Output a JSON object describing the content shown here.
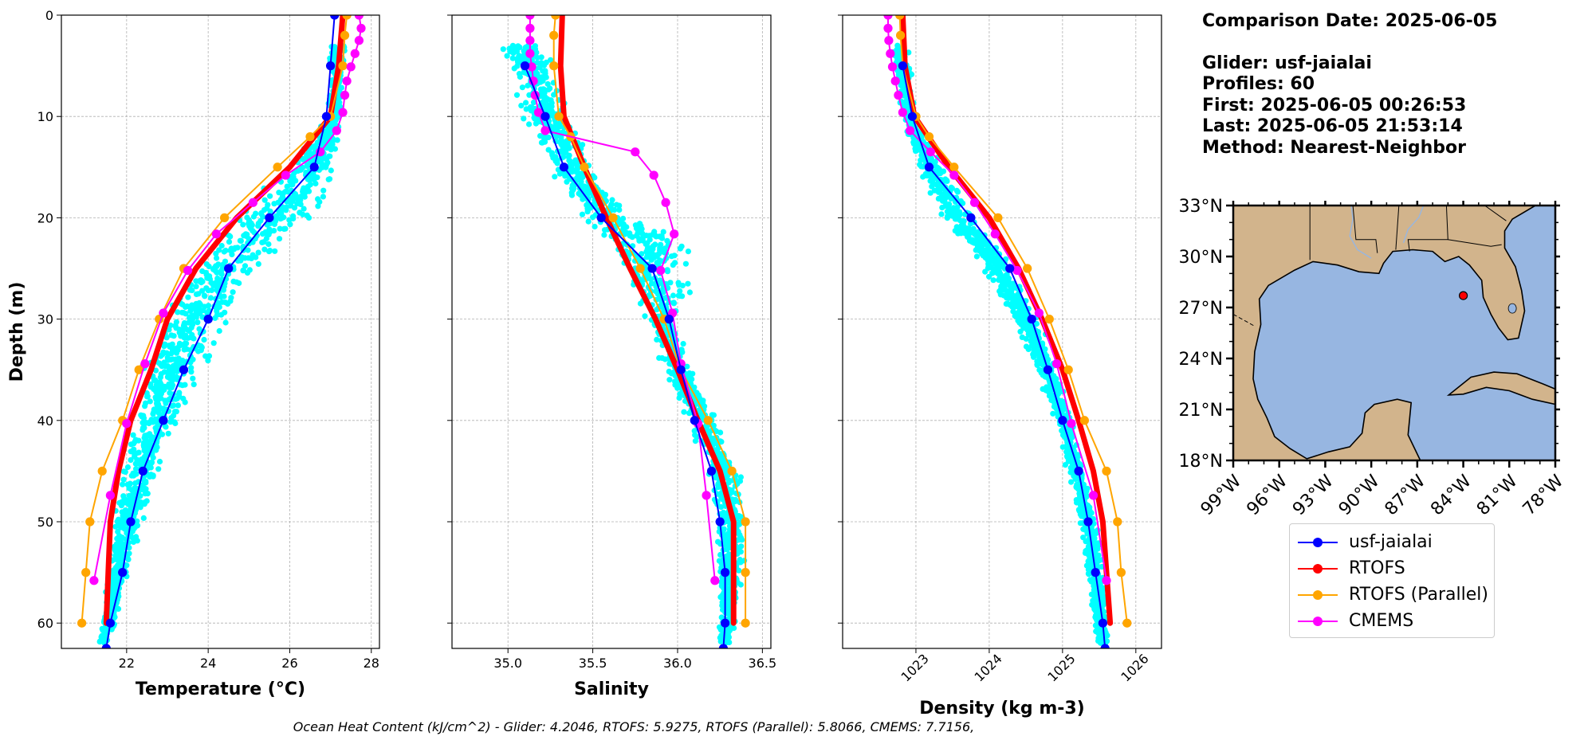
{
  "chart_data": [
    {
      "type": "line",
      "panel": "temperature",
      "xlabel": "Temperature (°C)",
      "ylabel": "Depth (m)",
      "xlim": [
        20.4,
        28.2
      ],
      "ylim": [
        62.5,
        0
      ],
      "xticks": [
        "22",
        "24",
        "26",
        "28"
      ],
      "yticks": [
        "0",
        "10",
        "20",
        "30",
        "40",
        "50",
        "60"
      ],
      "grid": true,
      "scatter_color": "#00ffff",
      "scatter_envelope": {
        "depths": [
          3,
          5,
          10,
          15,
          20,
          25,
          30,
          35,
          40,
          45,
          50,
          55,
          60,
          62
        ],
        "min": [
          26.9,
          26.9,
          26.9,
          25.8,
          24.3,
          23.3,
          22.7,
          22.3,
          22.0,
          21.8,
          21.6,
          21.5,
          21.3,
          21.2
        ],
        "max": [
          27.5,
          27.4,
          27.3,
          27.3,
          26.9,
          25.4,
          24.6,
          24.0,
          23.4,
          22.9,
          22.5,
          22.1,
          21.8,
          21.6
        ]
      },
      "series": [
        {
          "name": "usf-jaialai",
          "color": "#0000ff",
          "lw": 2,
          "marker": 9,
          "depth": [
            0,
            5,
            10,
            15,
            20,
            25,
            30,
            35,
            40,
            45,
            50,
            55,
            60,
            62.5
          ],
          "values": [
            27.1,
            27.0,
            26.9,
            26.6,
            25.5,
            24.5,
            24.0,
            23.4,
            22.9,
            22.4,
            22.1,
            21.9,
            21.6,
            21.5
          ]
        },
        {
          "name": "RTOFS",
          "color": "#ff0000",
          "lw": 7,
          "marker": 0,
          "depth": [
            0,
            5,
            10,
            15,
            20,
            25,
            30,
            35,
            40,
            45,
            50,
            55,
            60
          ],
          "values": [
            27.3,
            27.2,
            27.0,
            26.0,
            24.7,
            23.7,
            23.0,
            22.6,
            22.1,
            21.8,
            21.6,
            21.55,
            21.5
          ]
        },
        {
          "name": "RTOFS (Parallel)",
          "color": "#ffa500",
          "lw": 2,
          "marker": 9,
          "depth": [
            0,
            2,
            5,
            10,
            12,
            15,
            20,
            25,
            30,
            35,
            40,
            45,
            50,
            55,
            60
          ],
          "values": [
            27.4,
            27.35,
            27.3,
            27.0,
            26.5,
            25.7,
            24.4,
            23.4,
            22.8,
            22.3,
            21.9,
            21.4,
            21.1,
            21.0,
            20.9
          ]
        },
        {
          "name": "CMEMS",
          "color": "#ff00ff",
          "lw": 2,
          "marker": 9,
          "depth": [
            0,
            1.3,
            2.5,
            3.8,
            5.1,
            6.5,
            7.9,
            9.6,
            11.4,
            13.5,
            15.8,
            18.5,
            21.6,
            25.2,
            29.4,
            34.4,
            40.3,
            47.4,
            55.8
          ],
          "values": [
            27.7,
            27.75,
            27.7,
            27.6,
            27.5,
            27.4,
            27.35,
            27.3,
            27.15,
            26.75,
            25.9,
            25.1,
            24.2,
            23.5,
            22.9,
            22.45,
            22.0,
            21.6,
            21.2
          ]
        }
      ]
    },
    {
      "type": "line",
      "panel": "salinity",
      "xlabel": "Salinity",
      "xlim": [
        34.67,
        36.55
      ],
      "ylim": [
        62.5,
        0
      ],
      "xticks": [
        "35.0",
        "35.5",
        "36.0",
        "36.5"
      ],
      "grid": true,
      "scatter_color": "#00ffff",
      "scatter_envelope": {
        "depths": [
          3,
          5,
          10,
          15,
          20,
          22,
          25,
          28,
          30,
          35,
          40,
          45,
          50,
          55,
          60,
          62
        ],
        "min": [
          34.9,
          34.95,
          35.05,
          35.2,
          35.4,
          35.5,
          35.6,
          35.7,
          35.8,
          35.9,
          36.05,
          36.15,
          36.2,
          36.22,
          36.23,
          36.23
        ],
        "max": [
          35.25,
          35.3,
          35.4,
          35.55,
          35.75,
          36.1,
          36.1,
          36.15,
          36.0,
          36.1,
          36.25,
          36.38,
          36.45,
          36.4,
          36.35,
          36.32
        ]
      },
      "series": [
        {
          "name": "usf-jaialai",
          "color": "#0000ff",
          "lw": 2,
          "marker": 9,
          "depth": [
            5,
            10,
            15,
            20,
            25,
            30,
            35,
            40,
            45,
            50,
            55,
            60,
            62.5
          ],
          "values": [
            35.1,
            35.22,
            35.33,
            35.55,
            35.85,
            35.95,
            36.02,
            36.1,
            36.2,
            36.25,
            36.28,
            36.28,
            36.27
          ]
        },
        {
          "name": "RTOFS",
          "color": "#ff0000",
          "lw": 7,
          "marker": 0,
          "depth": [
            0,
            5,
            10,
            15,
            20,
            25,
            30,
            35,
            40,
            45,
            50,
            55,
            60
          ],
          "values": [
            35.32,
            35.31,
            35.33,
            35.45,
            35.58,
            35.72,
            35.87,
            36.0,
            36.12,
            36.25,
            36.33,
            36.33,
            36.33
          ]
        },
        {
          "name": "RTOFS (Parallel)",
          "color": "#ffa500",
          "lw": 2,
          "marker": 9,
          "depth": [
            0,
            2,
            5,
            10,
            12,
            15,
            20,
            25,
            30,
            35,
            40,
            45,
            50,
            55,
            60
          ],
          "values": [
            35.28,
            35.27,
            35.27,
            35.3,
            35.37,
            35.45,
            35.62,
            35.78,
            35.92,
            36.02,
            36.18,
            36.32,
            36.4,
            36.4,
            36.4
          ]
        },
        {
          "name": "CMEMS",
          "color": "#ff00ff",
          "lw": 2,
          "marker": 9,
          "depth": [
            0,
            1.3,
            2.5,
            3.8,
            5.1,
            6.5,
            7.9,
            9.6,
            11.4,
            13.5,
            15.8,
            18.5,
            21.6,
            25.2,
            29.4,
            34.4,
            40.3,
            47.4,
            55.8
          ],
          "values": [
            35.13,
            35.13,
            35.13,
            35.13,
            35.14,
            35.15,
            35.16,
            35.18,
            35.22,
            35.75,
            35.86,
            35.93,
            35.98,
            35.9,
            35.97,
            36.02,
            36.12,
            36.17,
            36.22
          ]
        }
      ]
    },
    {
      "type": "line",
      "panel": "density",
      "xlabel": "Density (kg m-3)",
      "xlim": [
        1022.0,
        1026.35
      ],
      "ylim": [
        62.5,
        0
      ],
      "xticks": [
        "1023",
        "1024",
        "1025",
        "1026"
      ],
      "grid": true,
      "scatter_color": "#00ffff",
      "scatter_envelope": {
        "depths": [
          3,
          5,
          10,
          15,
          20,
          25,
          30,
          35,
          40,
          45,
          50,
          55,
          60,
          62
        ],
        "min": [
          1022.65,
          1022.68,
          1022.78,
          1022.95,
          1023.3,
          1023.85,
          1024.3,
          1024.62,
          1024.88,
          1025.05,
          1025.2,
          1025.3,
          1025.4,
          1025.45
        ],
        "max": [
          1022.9,
          1022.95,
          1023.0,
          1023.45,
          1023.85,
          1024.4,
          1024.7,
          1024.95,
          1025.15,
          1025.35,
          1025.5,
          1025.6,
          1025.65,
          1025.65
        ]
      },
      "series": [
        {
          "name": "usf-jaialai",
          "color": "#0000ff",
          "lw": 2,
          "marker": 9,
          "depth": [
            5,
            10,
            15,
            20,
            25,
            30,
            35,
            40,
            45,
            50,
            55,
            60,
            62.5
          ],
          "values": [
            1022.82,
            1022.95,
            1023.18,
            1023.75,
            1024.28,
            1024.58,
            1024.8,
            1025.0,
            1025.22,
            1025.35,
            1025.45,
            1025.55,
            1025.58
          ]
        },
        {
          "name": "RTOFS",
          "color": "#ff0000",
          "lw": 7,
          "marker": 0,
          "depth": [
            0,
            5,
            10,
            15,
            20,
            25,
            30,
            35,
            40,
            45,
            50,
            55,
            60
          ],
          "values": [
            1022.82,
            1022.85,
            1022.98,
            1023.45,
            1024.0,
            1024.4,
            1024.72,
            1025.0,
            1025.22,
            1025.42,
            1025.55,
            1025.6,
            1025.65
          ]
        },
        {
          "name": "RTOFS (Parallel)",
          "color": "#ffa500",
          "lw": 2,
          "marker": 9,
          "depth": [
            0,
            2,
            5,
            10,
            12,
            15,
            20,
            25,
            30,
            35,
            40,
            45,
            50,
            55,
            60
          ],
          "values": [
            1022.78,
            1022.79,
            1022.82,
            1023.0,
            1023.18,
            1023.52,
            1024.12,
            1024.52,
            1024.82,
            1025.08,
            1025.3,
            1025.6,
            1025.75,
            1025.8,
            1025.88
          ]
        },
        {
          "name": "CMEMS",
          "color": "#ff00ff",
          "lw": 2,
          "marker": 9,
          "depth": [
            0,
            1.3,
            2.5,
            3.8,
            5.1,
            6.5,
            7.9,
            9.6,
            11.4,
            13.5,
            15.8,
            18.5,
            21.6,
            25.2,
            29.4,
            34.4,
            40.3,
            47.4,
            55.8
          ],
          "values": [
            1022.62,
            1022.62,
            1022.63,
            1022.65,
            1022.68,
            1022.72,
            1022.76,
            1022.82,
            1022.92,
            1023.2,
            1023.52,
            1023.8,
            1024.08,
            1024.38,
            1024.68,
            1024.92,
            1025.12,
            1025.42,
            1025.6
          ]
        }
      ]
    },
    {
      "type": "map",
      "panel": "location-map",
      "lon_range": [
        -99,
        -78
      ],
      "lat_range": [
        18,
        33
      ],
      "lon_ticks": [
        "99°W",
        "96°W",
        "93°W",
        "90°W",
        "87°W",
        "84°W",
        "81°W",
        "78°W"
      ],
      "lat_ticks": [
        "33°N",
        "30°N",
        "27°N",
        "24°N",
        "21°N",
        "18°N"
      ],
      "land_color": "#d2b48c",
      "water_color": "#97b6e1",
      "glider_position": {
        "lon": -84.0,
        "lat": 27.7,
        "color": "#ff0000"
      }
    }
  ],
  "info": {
    "comparison_date": "Comparison Date: 2025-06-05",
    "glider": "Glider: usf-jaialai",
    "profiles": "Profiles: 60",
    "first": "First: 2025-06-05 00:26:53",
    "last": "Last: 2025-06-05 21:53:14",
    "method": "Method: Nearest-Neighbor"
  },
  "legend": [
    {
      "label": "usf-jaialai",
      "color": "#0000ff"
    },
    {
      "label": "RTOFS",
      "color": "#ff0000"
    },
    {
      "label": "RTOFS (Parallel)",
      "color": "#ffa500"
    },
    {
      "label": "CMEMS",
      "color": "#ff00ff"
    }
  ],
  "footer": "Ocean Heat Content (kJ/cm^2) - Glider: 4.2046,  RTOFS: 5.9275,  RTOFS (Parallel): 5.8066,  CMEMS: 7.7156,"
}
